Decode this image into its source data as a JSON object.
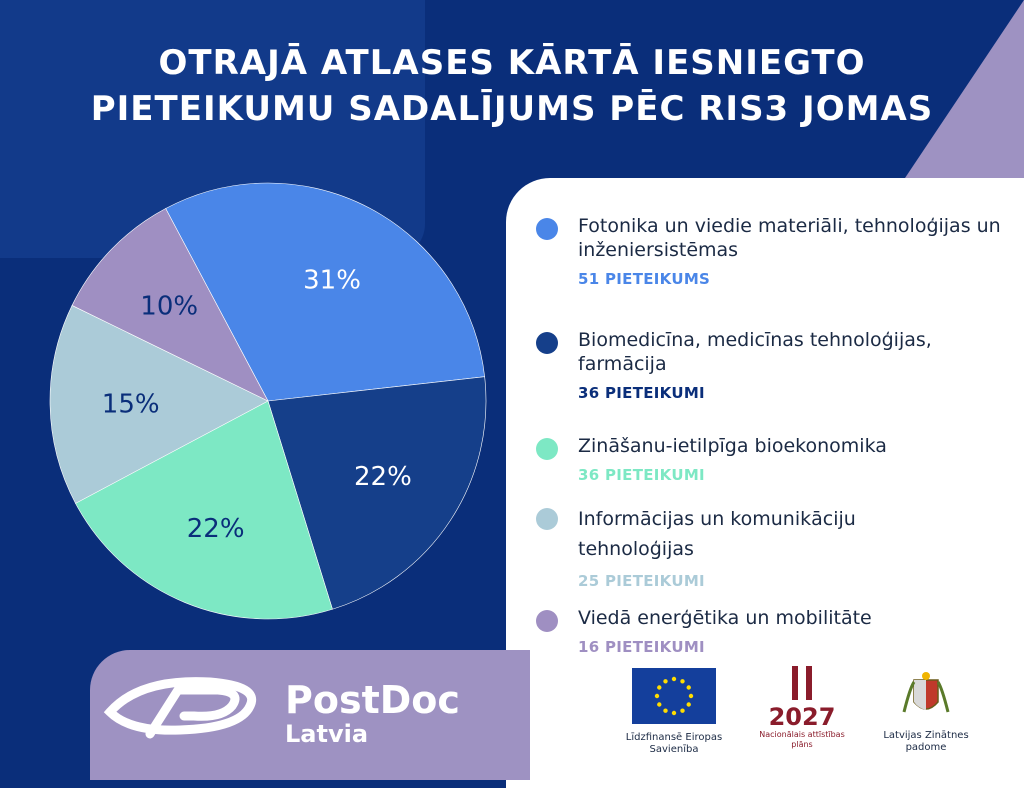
{
  "title": {
    "line1": "OTRAJĀ ATLASES KĀRTĀ IESNIEGTO",
    "line2": "PIETEIKUMU SADALĪJUMS PĒC RIS3 JOMAS"
  },
  "chart_data": {
    "type": "pie",
    "slices": [
      {
        "label": "Fotonika un viedie materiāli, tehnoloģijas un inženiersistēmas",
        "percent": 31,
        "percent_label": "31%",
        "count_label": "51 PIETEIKUMS",
        "color": "#4a86e8"
      },
      {
        "label": "Biomedicīna, medicīnas tehnoloģijas, farmācija",
        "percent": 22,
        "percent_label": "22%",
        "count_label": "36 PIETEIKUMI",
        "color": "#153f8a"
      },
      {
        "label": "Zināšanu-ietilpīga bioekonomika",
        "percent": 22,
        "percent_label": "22%",
        "count_label": "36 PIETEIKUMI",
        "color": "#7de8c4"
      },
      {
        "label": "Informācijas un komunikāciju tehnoloģijas",
        "percent": 15,
        "percent_label": "15%",
        "count_label": "25 PIETEIKUMI",
        "color": "#abcbd8"
      },
      {
        "label": "Viedā enerģētika un mobilitāte",
        "percent": 10,
        "percent_label": "10%",
        "count_label": "16 PIETEIKUMI",
        "color": "#9f8fc2"
      }
    ],
    "legend": "right"
  },
  "colors": {
    "background": "#0a2e7a",
    "panel": "#ffffff",
    "accent_purple": "#9e92c2"
  },
  "brand": {
    "name": "PostDoc",
    "sub": "Latvia"
  },
  "sponsors": {
    "eu": "Līdzfinansē Eiropas Savienība",
    "nap_year": "2027",
    "nap": "Nacionālais attīstības plāns",
    "lzp": "Latvijas Zinātnes padome"
  }
}
